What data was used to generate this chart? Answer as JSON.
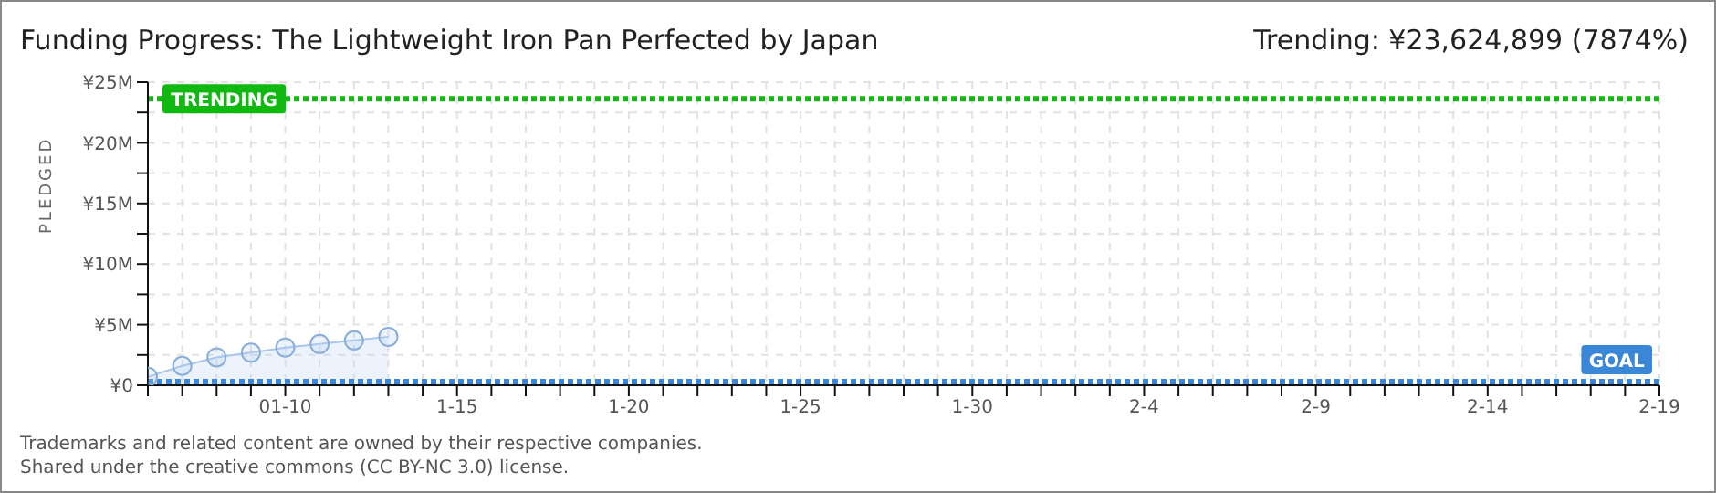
{
  "chart_data": {
    "type": "area",
    "title": "Funding Progress: The Lightweight Iron Pan Perfected by Japan",
    "subtitle": "Trending:  ¥23,624,899 (7874%)",
    "ylabel": "PLEDGED",
    "x": [
      "--01-06",
      "--01-07",
      "--01-08",
      "--01-09",
      "--01-10",
      "--01-11",
      "--01-12",
      "--01-13"
    ],
    "series": [
      {
        "color": "#b3d0f3",
        "values": [
          700000,
          1600000,
          2300000,
          2700000,
          3100000,
          3400000,
          3700000,
          4000000
        ]
      }
    ],
    "marker": "circle",
    "grid": true,
    "legend": false,
    "ylim": [
      0,
      25000000
    ],
    "yticks": [
      {
        "value": 0,
        "label": "¥0"
      },
      {
        "value": 2500000,
        "label": null
      },
      {
        "value": 5000000,
        "label": "¥5M"
      },
      {
        "value": 7500000,
        "label": null
      },
      {
        "value": 10000000,
        "label": "¥10M"
      },
      {
        "value": 12500000,
        "label": null
      },
      {
        "value": 15000000,
        "label": "¥15M"
      },
      {
        "value": 17500000,
        "label": null
      },
      {
        "value": 20000000,
        "label": "¥20M"
      },
      {
        "value": 22500000,
        "label": null
      },
      {
        "value": 25000000,
        "label": "¥25M"
      }
    ],
    "xlim": [
      "--01-06",
      "--02-19"
    ],
    "xticks": [
      {
        "value": "--01-06",
        "label": null
      },
      {
        "value": "--01-07",
        "label": null
      },
      {
        "value": "--01-08",
        "label": null
      },
      {
        "value": "--01-09",
        "label": null
      },
      {
        "value": "--01-10",
        "label": "01-10"
      },
      {
        "value": "--01-11",
        "label": null
      },
      {
        "value": "--01-12",
        "label": null
      },
      {
        "value": "--01-13",
        "label": null
      },
      {
        "value": "--01-14",
        "label": null
      },
      {
        "value": "--01-15",
        "label": "1-15"
      },
      {
        "value": "--01-16",
        "label": null
      },
      {
        "value": "--01-17",
        "label": null
      },
      {
        "value": "--01-18",
        "label": null
      },
      {
        "value": "--01-19",
        "label": null
      },
      {
        "value": "--01-20",
        "label": "1-20"
      },
      {
        "value": "--01-21",
        "label": null
      },
      {
        "value": "--01-22",
        "label": null
      },
      {
        "value": "--01-23",
        "label": null
      },
      {
        "value": "--01-24",
        "label": null
      },
      {
        "value": "--01-25",
        "label": "1-25"
      },
      {
        "value": "--01-26",
        "label": null
      },
      {
        "value": "--01-27",
        "label": null
      },
      {
        "value": "--01-28",
        "label": null
      },
      {
        "value": "--01-29",
        "label": null
      },
      {
        "value": "--01-30",
        "label": "1-30"
      },
      {
        "value": "--01-31",
        "label": null
      },
      {
        "value": "--02-01",
        "label": null
      },
      {
        "value": "--02-02",
        "label": null
      },
      {
        "value": "--02-03",
        "label": null
      },
      {
        "value": "--02-04",
        "label": "2-4"
      },
      {
        "value": "--02-05",
        "label": null
      },
      {
        "value": "--02-06",
        "label": null
      },
      {
        "value": "--02-07",
        "label": null
      },
      {
        "value": "--02-08",
        "label": null
      },
      {
        "value": "--02-09",
        "label": "2-9"
      },
      {
        "value": "--02-10",
        "label": null
      },
      {
        "value": "--02-11",
        "label": null
      },
      {
        "value": "--02-12",
        "label": null
      },
      {
        "value": "--02-13",
        "label": null
      },
      {
        "value": "--02-14",
        "label": "2-14"
      },
      {
        "value": "--02-15",
        "label": null
      },
      {
        "value": "--02-16",
        "label": null
      },
      {
        "value": "--02-17",
        "label": null
      },
      {
        "value": "--02-18",
        "label": null
      },
      {
        "value": "--02-19",
        "label": "2-19"
      }
    ],
    "ref_lines": [
      {
        "axis": "y",
        "value": 23624899,
        "label": "TRENDING",
        "color": "#11b811",
        "line_style": "dotted"
      },
      {
        "axis": "y",
        "value": 300000,
        "label": "GOAL",
        "color": "#3a87d8",
        "line_style": "dotted"
      }
    ],
    "annotations": [
      "Trademarks and related content are owned by their respective companies.",
      "Shared under the creative commons (CC BY-NC 3.0) license."
    ]
  }
}
